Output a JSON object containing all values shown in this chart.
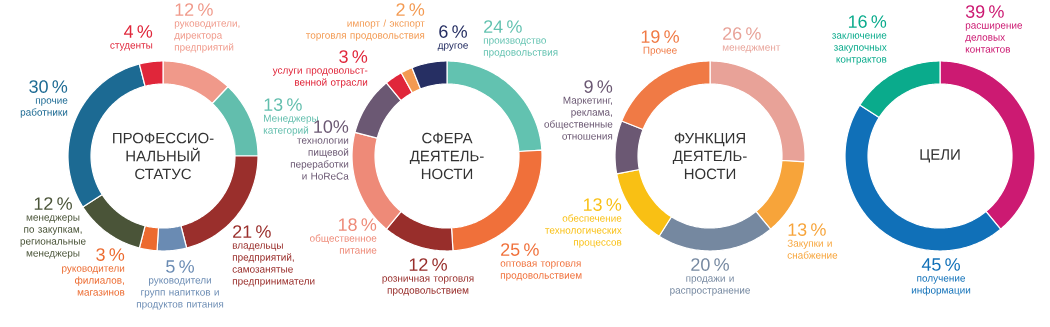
{
  "chart_data": [
    {
      "type": "donut",
      "title": "ПРОФЕССИО-НАЛЬНЫЙ СТАТУС",
      "categories": [
        "руководители, директора предприятий",
        "Менеджеры категорий",
        "владельцы предприятий, самозанятые предприниматели",
        "руководители групп напитков и продуктов питания",
        "руководители филиалов, магазинов",
        "менеджеры по закупкам, региональные менеджеры",
        "прочие работники",
        "студенты"
      ],
      "values": [
        12,
        13,
        21,
        5,
        3,
        12,
        30,
        4
      ],
      "value_labels": [
        "12 %",
        "13 %",
        "21 %",
        "5 %",
        "3 %",
        "12 %",
        "30 %",
        "4 %"
      ],
      "colors": [
        "#f0998a",
        "#62bead",
        "#9a2f2c",
        "#6a8bb3",
        "#ec6a2f",
        "#4a5438",
        "#1c6a93",
        "#e0263a"
      ]
    },
    {
      "type": "donut",
      "title": "СФЕРА ДЕЯТЕЛЬ-НОСТИ",
      "categories": [
        "производство продовольствия",
        "оптовая торговля продовольствием",
        "розничная торговля продовольствием",
        "общественное питание",
        "технологии пищевой переработки и HoReCa",
        "услуги продовольст-венной отрасли",
        "импорт / экспорт торговля продовольствия",
        "другое"
      ],
      "values": [
        24,
        25,
        12,
        18,
        10,
        3,
        2,
        6
      ],
      "value_labels": [
        "24 %",
        "25 %",
        "12 %",
        "18 %",
        "10%",
        "3 %",
        "2 %",
        "6 %"
      ],
      "colors": [
        "#62c2b0",
        "#f0703a",
        "#982e2b",
        "#ee8a78",
        "#6b5873",
        "#e0263a",
        "#f39a52",
        "#262f63"
      ]
    },
    {
      "type": "donut",
      "title": "ФУНКЦИЯ ДЕЯТЕЛЬ-НОСТИ",
      "categories": [
        "менеджмент",
        "Закупки и снабжение",
        "продажи и распространение",
        "обеспечение технологических процессов",
        "Маркетинг, реклама, общественные отношения",
        "Прочее"
      ],
      "values": [
        26,
        13,
        20,
        13,
        9,
        19
      ],
      "value_labels": [
        "26 %",
        "13 %",
        "20 %",
        "13 %",
        "9 %",
        "19 %"
      ],
      "colors": [
        "#e8a298",
        "#f7a43a",
        "#7588a0",
        "#f9c014",
        "#6b5873",
        "#f07a45"
      ]
    },
    {
      "type": "donut",
      "title": "ЦЕЛИ",
      "categories": [
        "расширение деловых контактов",
        "получение информации",
        "заключение закупочных контрактов"
      ],
      "values": [
        39,
        45,
        16
      ],
      "value_labels": [
        "39 %",
        "45 %",
        "16 %"
      ],
      "colors": [
        "#cc1a72",
        "#1070b8",
        "#0aab8c"
      ]
    }
  ]
}
